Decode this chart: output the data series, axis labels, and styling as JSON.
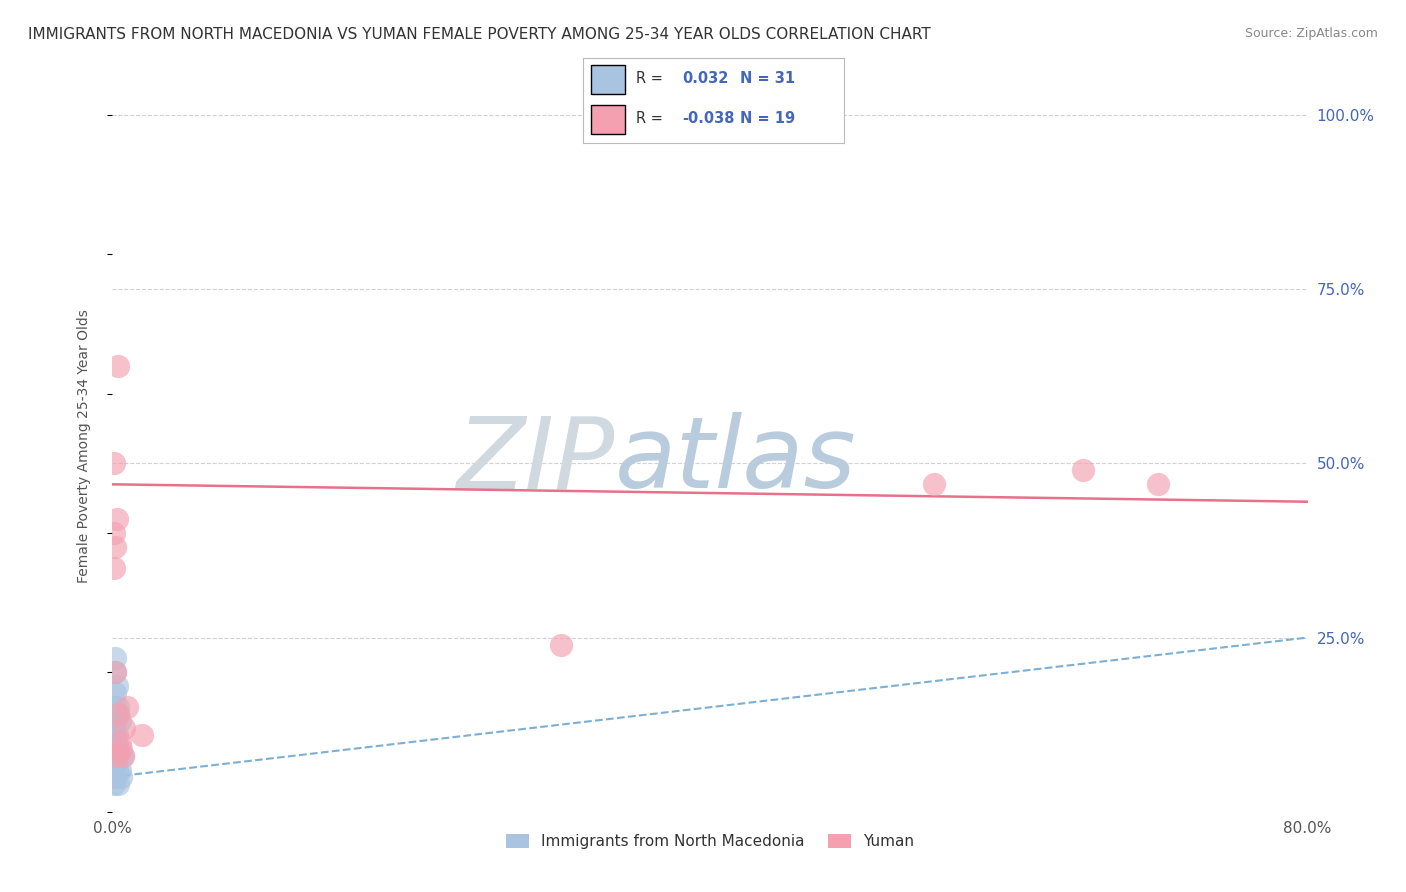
{
  "title": "IMMIGRANTS FROM NORTH MACEDONIA VS YUMAN FEMALE POVERTY AMONG 25-34 YEAR OLDS CORRELATION CHART",
  "source": "Source: ZipAtlas.com",
  "ylabel": "Female Poverty Among 25-34 Year Olds",
  "xlim": [
    0.0,
    0.8
  ],
  "ylim": [
    0.0,
    1.05
  ],
  "blue_R": 0.032,
  "blue_N": 31,
  "pink_R": -0.038,
  "pink_N": 19,
  "legend_label_blue": "Immigrants from North Macedonia",
  "legend_label_pink": "Yuman",
  "blue_scatter_x": [
    0.001,
    0.001,
    0.001,
    0.001,
    0.001,
    0.001,
    0.001,
    0.001,
    0.001,
    0.001,
    0.002,
    0.002,
    0.002,
    0.002,
    0.002,
    0.002,
    0.002,
    0.002,
    0.002,
    0.003,
    0.003,
    0.003,
    0.003,
    0.003,
    0.004,
    0.004,
    0.004,
    0.005,
    0.005,
    0.006,
    0.007
  ],
  "blue_scatter_y": [
    0.04,
    0.05,
    0.06,
    0.07,
    0.08,
    0.09,
    0.1,
    0.11,
    0.12,
    0.13,
    0.05,
    0.07,
    0.08,
    0.1,
    0.13,
    0.15,
    0.17,
    0.2,
    0.22,
    0.06,
    0.08,
    0.11,
    0.14,
    0.18,
    0.04,
    0.09,
    0.15,
    0.06,
    0.13,
    0.05,
    0.08
  ],
  "pink_scatter_x": [
    0.001,
    0.001,
    0.001,
    0.002,
    0.002,
    0.003,
    0.003,
    0.004,
    0.004,
    0.005,
    0.006,
    0.007,
    0.008,
    0.01,
    0.02,
    0.3,
    0.55,
    0.65,
    0.7
  ],
  "pink_scatter_y": [
    0.35,
    0.4,
    0.5,
    0.2,
    0.38,
    0.08,
    0.42,
    0.14,
    0.64,
    0.1,
    0.09,
    0.08,
    0.12,
    0.15,
    0.11,
    0.24,
    0.47,
    0.49,
    0.47
  ],
  "blue_trend_x0": 0.0,
  "blue_trend_y0": 0.05,
  "blue_trend_x1": 0.8,
  "blue_trend_y1": 0.25,
  "pink_trend_x0": 0.0,
  "pink_trend_y0": 0.47,
  "pink_trend_x1": 0.8,
  "pink_trend_y1": 0.445,
  "blue_color": "#a8c4e0",
  "pink_color": "#f4a0b0",
  "blue_trend_color": "#7bafd4",
  "pink_trend_color": "#e8708a",
  "watermark_zip": "ZIP",
  "watermark_atlas": "atlas",
  "watermark_zip_color": "#d0d8e0",
  "watermark_atlas_color": "#b8ccdd",
  "grid_color": "#cccccc",
  "background_color": "#ffffff",
  "title_fontsize": 11,
  "axis_label_fontsize": 10,
  "right_tick_color": "#4466bb"
}
